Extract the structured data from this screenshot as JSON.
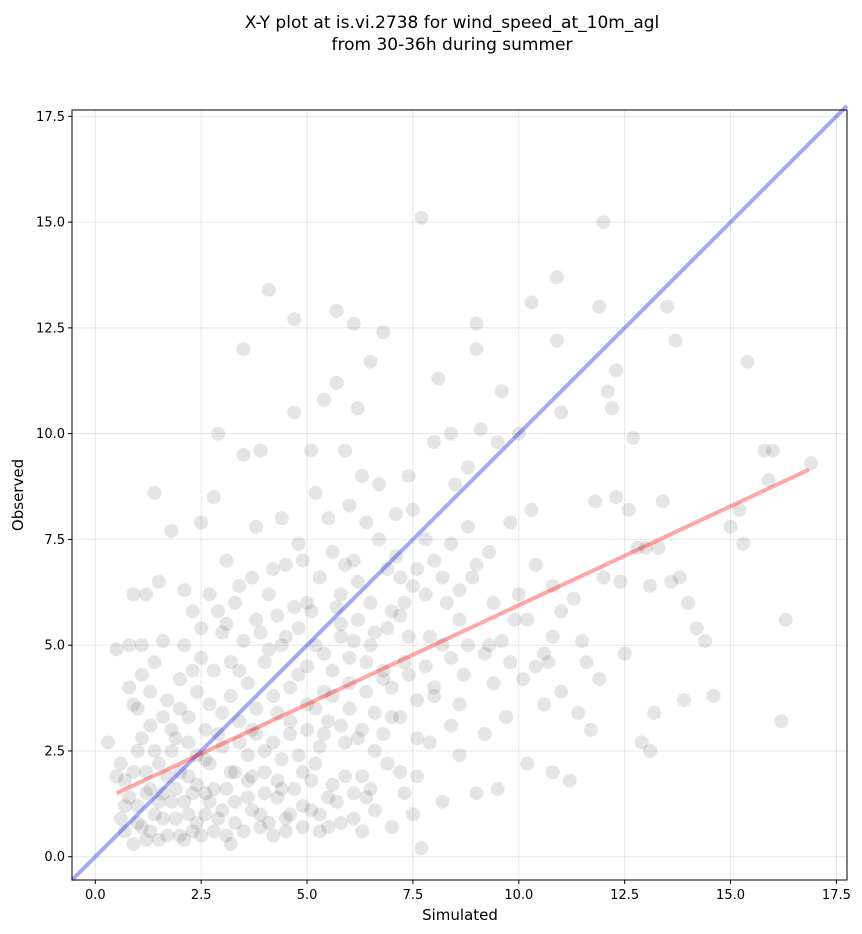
{
  "chart_data": {
    "type": "scatter",
    "title": [
      "X-Y plot at is.vi.2738 for wind_speed_at_10m_agl",
      "from 30-36h during summer"
    ],
    "xlabel": "Simulated",
    "ylabel": "Observed",
    "xlim": [
      -0.55,
      17.75
    ],
    "ylim": [
      -0.55,
      17.65
    ],
    "xticks": [
      0.0,
      2.5,
      5.0,
      7.5,
      10.0,
      12.5,
      15.0,
      17.5
    ],
    "yticks": [
      0.0,
      2.5,
      5.0,
      7.5,
      10.0,
      12.5,
      15.0,
      17.5
    ],
    "xtick_labels": [
      "0.0",
      "2.5",
      "5.0",
      "7.5",
      "10.0",
      "12.5",
      "15.0",
      "17.5"
    ],
    "ytick_labels": [
      "0.0",
      "2.5",
      "5.0",
      "7.5",
      "10.0",
      "12.5",
      "15.0",
      "17.5"
    ],
    "grid": true,
    "point_color": "#000000",
    "point_alpha": 0.1,
    "identity_line": {
      "color": "#0000ff",
      "alpha": 0.35,
      "from": [
        -0.55,
        -0.55
      ],
      "to": [
        17.75,
        17.75
      ]
    },
    "fit_line": {
      "color": "#ff0000",
      "alpha": 0.35,
      "from": [
        0.5,
        1.5
      ],
      "to": [
        16.85,
        9.15
      ]
    },
    "points": [
      [
        0.3,
        2.7
      ],
      [
        0.5,
        1.9
      ],
      [
        0.5,
        4.9
      ],
      [
        0.6,
        2.2
      ],
      [
        0.7,
        0.6
      ],
      [
        0.7,
        1.8
      ],
      [
        0.8,
        4.0
      ],
      [
        0.8,
        5.0
      ],
      [
        0.9,
        6.2
      ],
      [
        0.9,
        3.6
      ],
      [
        1.0,
        0.8
      ],
      [
        1.0,
        1.2
      ],
      [
        1.0,
        2.5
      ],
      [
        1.1,
        4.3
      ],
      [
        1.1,
        5.0
      ],
      [
        1.2,
        6.2
      ],
      [
        1.2,
        0.4
      ],
      [
        1.3,
        1.6
      ],
      [
        1.3,
        3.1
      ],
      [
        1.4,
        8.6
      ],
      [
        1.4,
        4.6
      ],
      [
        1.5,
        6.5
      ],
      [
        1.5,
        2.2
      ],
      [
        1.6,
        0.9
      ],
      [
        1.6,
        5.1
      ],
      [
        1.7,
        3.7
      ],
      [
        1.8,
        1.3
      ],
      [
        1.8,
        7.7
      ],
      [
        1.9,
        2.8
      ],
      [
        2.0,
        4.2
      ],
      [
        2.0,
        0.5
      ],
      [
        2.1,
        6.3
      ],
      [
        2.2,
        1.9
      ],
      [
        2.2,
        3.3
      ],
      [
        2.3,
        5.8
      ],
      [
        2.4,
        0.8
      ],
      [
        2.4,
        2.4
      ],
      [
        2.5,
        4.7
      ],
      [
        2.5,
        7.9
      ],
      [
        2.6,
        1.5
      ],
      [
        2.7,
        3.6
      ],
      [
        2.8,
        8.5
      ],
      [
        2.8,
        0.6
      ],
      [
        2.9,
        2.9
      ],
      [
        2.9,
        10.0
      ],
      [
        3.0,
        5.3
      ],
      [
        3.0,
        1.1
      ],
      [
        3.1,
        7.0
      ],
      [
        3.2,
        3.8
      ],
      [
        3.2,
        0.3
      ],
      [
        3.3,
        2.0
      ],
      [
        3.4,
        6.4
      ],
      [
        3.4,
        4.4
      ],
      [
        3.5,
        12.0
      ],
      [
        3.5,
        9.5
      ],
      [
        3.6,
        1.4
      ],
      [
        3.7,
        3.0
      ],
      [
        3.8,
        7.8
      ],
      [
        3.8,
        5.6
      ],
      [
        3.9,
        0.7
      ],
      [
        3.9,
        9.6
      ],
      [
        4.0,
        2.5
      ],
      [
        4.1,
        13.4
      ],
      [
        4.1,
        4.9
      ],
      [
        4.2,
        6.8
      ],
      [
        4.3,
        1.8
      ],
      [
        4.3,
        3.4
      ],
      [
        4.4,
        8.0
      ],
      [
        4.5,
        5.2
      ],
      [
        4.5,
        0.9
      ],
      [
        4.6,
        2.9
      ],
      [
        4.7,
        12.7
      ],
      [
        4.7,
        10.5
      ],
      [
        4.8,
        4.3
      ],
      [
        4.8,
        7.4
      ],
      [
        4.9,
        1.2
      ],
      [
        5.0,
        3.6
      ],
      [
        5.0,
        6.0
      ],
      [
        5.1,
        9.6
      ],
      [
        5.2,
        2.2
      ],
      [
        5.2,
        8.6
      ],
      [
        5.3,
        0.6
      ],
      [
        5.4,
        4.8
      ],
      [
        5.4,
        10.8
      ],
      [
        5.5,
        3.2
      ],
      [
        5.6,
        7.2
      ],
      [
        5.6,
        1.7
      ],
      [
        5.7,
        12.9
      ],
      [
        5.7,
        11.2
      ],
      [
        5.8,
        5.5
      ],
      [
        5.9,
        9.6
      ],
      [
        5.9,
        2.7
      ],
      [
        6.0,
        4.1
      ],
      [
        6.0,
        8.3
      ],
      [
        6.1,
        12.6
      ],
      [
        6.1,
        0.9
      ],
      [
        6.2,
        6.5
      ],
      [
        6.2,
        10.6
      ],
      [
        6.3,
        3.0
      ],
      [
        6.4,
        7.9
      ],
      [
        6.4,
        1.4
      ],
      [
        6.5,
        11.7
      ],
      [
        6.5,
        5.0
      ],
      [
        6.6,
        2.5
      ],
      [
        6.7,
        8.8
      ],
      [
        6.8,
        12.4
      ],
      [
        6.8,
        4.2
      ],
      [
        6.9,
        6.8
      ],
      [
        7.0,
        0.7
      ],
      [
        7.0,
        3.3
      ],
      [
        7.1,
        8.1
      ],
      [
        7.2,
        5.7
      ],
      [
        7.2,
        2.0
      ],
      [
        7.3,
        4.6
      ],
      [
        7.4,
        9.0
      ],
      [
        7.5,
        1.0
      ],
      [
        7.5,
        6.4
      ],
      [
        7.6,
        3.7
      ],
      [
        7.7,
        15.1
      ],
      [
        7.7,
        0.2
      ],
      [
        7.8,
        7.5
      ],
      [
        7.9,
        2.7
      ],
      [
        7.9,
        5.2
      ],
      [
        8.0,
        9.8
      ],
      [
        8.0,
        4.0
      ],
      [
        8.1,
        11.3
      ],
      [
        8.2,
        1.3
      ],
      [
        8.3,
        6.0
      ],
      [
        8.4,
        3.1
      ],
      [
        8.4,
        10.0
      ],
      [
        8.5,
        8.8
      ],
      [
        8.6,
        2.4
      ],
      [
        8.6,
        5.6
      ],
      [
        8.7,
        4.3
      ],
      [
        8.8,
        9.2
      ],
      [
        8.9,
        6.6
      ],
      [
        9.0,
        1.5
      ],
      [
        9.0,
        12.6
      ],
      [
        9.0,
        12.0
      ],
      [
        9.1,
        10.1
      ],
      [
        9.2,
        2.9
      ],
      [
        9.3,
        5.0
      ],
      [
        9.3,
        7.2
      ],
      [
        9.4,
        4.1
      ],
      [
        9.5,
        9.8
      ],
      [
        9.5,
        1.6
      ],
      [
        9.6,
        11.0
      ],
      [
        9.7,
        3.3
      ],
      [
        9.8,
        7.9
      ],
      [
        9.9,
        5.6
      ],
      [
        10.0,
        10.0
      ],
      [
        10.1,
        4.2
      ],
      [
        10.2,
        2.2
      ],
      [
        10.3,
        8.2
      ],
      [
        10.3,
        13.1
      ],
      [
        10.4,
        4.5
      ],
      [
        10.6,
        3.6
      ],
      [
        10.7,
        4.6
      ],
      [
        10.8,
        6.4
      ],
      [
        10.8,
        2.0
      ],
      [
        10.9,
        13.7
      ],
      [
        10.9,
        12.2
      ],
      [
        11.0,
        10.5
      ],
      [
        11.0,
        5.8
      ],
      [
        11.2,
        1.8
      ],
      [
        11.3,
        6.1
      ],
      [
        11.4,
        3.4
      ],
      [
        11.5,
        5.1
      ],
      [
        11.6,
        4.6
      ],
      [
        11.7,
        3.0
      ],
      [
        11.8,
        8.4
      ],
      [
        11.9,
        13.0
      ],
      [
        11.9,
        4.2
      ],
      [
        12.0,
        15.0
      ],
      [
        12.0,
        6.6
      ],
      [
        12.1,
        11.0
      ],
      [
        12.2,
        10.6
      ],
      [
        12.3,
        11.5
      ],
      [
        12.3,
        8.5
      ],
      [
        12.4,
        6.5
      ],
      [
        12.5,
        4.8
      ],
      [
        12.6,
        8.2
      ],
      [
        12.7,
        9.9
      ],
      [
        12.8,
        7.3
      ],
      [
        12.9,
        2.7
      ],
      [
        13.0,
        7.3
      ],
      [
        13.1,
        2.5
      ],
      [
        13.1,
        6.4
      ],
      [
        13.2,
        3.4
      ],
      [
        13.3,
        7.3
      ],
      [
        13.4,
        8.4
      ],
      [
        13.5,
        13.0
      ],
      [
        13.6,
        6.5
      ],
      [
        13.7,
        12.2
      ],
      [
        13.8,
        6.6
      ],
      [
        13.9,
        3.7
      ],
      [
        14.0,
        6.0
      ],
      [
        14.2,
        5.4
      ],
      [
        14.4,
        5.1
      ],
      [
        14.6,
        3.8
      ],
      [
        15.0,
        7.8
      ],
      [
        15.2,
        8.2
      ],
      [
        15.3,
        7.4
      ],
      [
        15.4,
        11.7
      ],
      [
        15.8,
        9.6
      ],
      [
        15.9,
        8.9
      ],
      [
        16.0,
        9.6
      ],
      [
        16.2,
        3.2
      ],
      [
        16.3,
        5.6
      ],
      [
        16.9,
        9.3
      ],
      [
        0.6,
        0.9
      ],
      [
        0.8,
        1.4
      ],
      [
        0.9,
        0.3
      ],
      [
        1.2,
        2.0
      ],
      [
        1.4,
        1.0
      ],
      [
        1.5,
        0.4
      ],
      [
        1.7,
        1.9
      ],
      [
        1.9,
        0.9
      ],
      [
        2.1,
        1.3
      ],
      [
        2.3,
        0.6
      ],
      [
        2.6,
        1.0
      ],
      [
        2.7,
        2.2
      ],
      [
        3.1,
        1.6
      ],
      [
        3.3,
        0.8
      ],
      [
        3.6,
        2.4
      ],
      [
        3.7,
        1.1
      ],
      [
        4.0,
        1.5
      ],
      [
        4.2,
        0.5
      ],
      [
        4.4,
        2.3
      ],
      [
        4.6,
        1.0
      ],
      [
        4.9,
        2.0
      ],
      [
        5.1,
        1.1
      ],
      [
        5.3,
        2.6
      ],
      [
        5.5,
        1.4
      ],
      [
        5.8,
        0.8
      ],
      [
        6.3,
        1.9
      ],
      [
        6.6,
        1.1
      ],
      [
        6.9,
        2.2
      ],
      [
        7.3,
        1.5
      ],
      [
        7.6,
        1.9
      ],
      [
        1.1,
        2.8
      ],
      [
        1.3,
        3.9
      ],
      [
        1.6,
        3.3
      ],
      [
        1.8,
        2.5
      ],
      [
        2.0,
        3.5
      ],
      [
        2.2,
        2.7
      ],
      [
        2.4,
        3.9
      ],
      [
        2.6,
        3.0
      ],
      [
        2.8,
        4.4
      ],
      [
        3.0,
        3.4
      ],
      [
        3.2,
        4.6
      ],
      [
        3.4,
        3.2
      ],
      [
        3.6,
        4.1
      ],
      [
        3.8,
        3.5
      ],
      [
        4.0,
        4.6
      ],
      [
        4.2,
        3.8
      ],
      [
        4.4,
        5.0
      ],
      [
        4.6,
        4.0
      ],
      [
        4.8,
        5.4
      ],
      [
        5.0,
        4.5
      ],
      [
        5.2,
        5.0
      ],
      [
        5.4,
        3.9
      ],
      [
        5.6,
        4.4
      ],
      [
        5.8,
        5.2
      ],
      [
        6.0,
        4.7
      ],
      [
        6.2,
        5.6
      ],
      [
        6.4,
        4.6
      ],
      [
        6.6,
        5.3
      ],
      [
        6.8,
        4.4
      ],
      [
        7.0,
        5.8
      ],
      [
        7.2,
        6.6
      ],
      [
        7.4,
        5.2
      ],
      [
        7.6,
        6.8
      ],
      [
        7.8,
        6.2
      ],
      [
        8.0,
        7.0
      ],
      [
        8.2,
        6.6
      ],
      [
        8.4,
        7.4
      ],
      [
        8.6,
        6.3
      ],
      [
        8.8,
        7.8
      ],
      [
        9.0,
        6.9
      ],
      [
        5.5,
        8.0
      ],
      [
        5.8,
        6.2
      ],
      [
        6.1,
        7.0
      ],
      [
        6.3,
        9.0
      ],
      [
        6.5,
        6.0
      ],
      [
        6.7,
        7.5
      ],
      [
        6.9,
        5.4
      ],
      [
        7.1,
        7.1
      ],
      [
        7.3,
        6.0
      ],
      [
        7.5,
        8.2
      ],
      [
        4.1,
        6.2
      ],
      [
        4.3,
        5.7
      ],
      [
        4.5,
        6.9
      ],
      [
        4.7,
        5.9
      ],
      [
        4.9,
        7.0
      ],
      [
        5.1,
        5.8
      ],
      [
        5.3,
        6.6
      ],
      [
        5.7,
        5.9
      ],
      [
        5.9,
        6.9
      ],
      [
        6.1,
        5.1
      ],
      [
        3.1,
        5.5
      ],
      [
        3.3,
        6.0
      ],
      [
        3.5,
        5.1
      ],
      [
        3.7,
        6.6
      ],
      [
        3.9,
        5.3
      ],
      [
        2.5,
        5.4
      ],
      [
        2.7,
        6.2
      ],
      [
        2.9,
        5.8
      ],
      [
        2.1,
        5.0
      ],
      [
        2.3,
        4.4
      ],
      [
        1.0,
        3.5
      ],
      [
        1.2,
        1.5
      ],
      [
        1.4,
        2.5
      ],
      [
        1.6,
        1.5
      ],
      [
        1.8,
        3.0
      ],
      [
        2.0,
        2.0
      ],
      [
        2.2,
        1.0
      ],
      [
        2.4,
        1.7
      ],
      [
        2.6,
        2.3
      ],
      [
        2.8,
        1.6
      ],
      [
        3.0,
        2.6
      ],
      [
        3.2,
        2.0
      ],
      [
        3.4,
        2.7
      ],
      [
        3.6,
        1.8
      ],
      [
        3.8,
        2.9
      ],
      [
        4.0,
        2.0
      ],
      [
        4.2,
        2.7
      ],
      [
        4.4,
        1.6
      ],
      [
        4.6,
        3.2
      ],
      [
        4.8,
        2.4
      ],
      [
        5.0,
        3.0
      ],
      [
        5.2,
        3.5
      ],
      [
        5.4,
        2.9
      ],
      [
        5.6,
        3.8
      ],
      [
        5.8,
        3.1
      ],
      [
        6.0,
        3.5
      ],
      [
        6.2,
        2.8
      ],
      [
        6.4,
        3.9
      ],
      [
        6.6,
        3.4
      ],
      [
        6.8,
        2.9
      ],
      [
        7.0,
        4.0
      ],
      [
        7.2,
        3.3
      ],
      [
        7.4,
        4.3
      ],
      [
        7.6,
        2.8
      ],
      [
        7.8,
        4.5
      ],
      [
        8.0,
        3.8
      ],
      [
        8.2,
        5.0
      ],
      [
        8.4,
        4.7
      ],
      [
        8.6,
        3.6
      ],
      [
        8.8,
        5.0
      ],
      [
        9.2,
        4.8
      ],
      [
        9.4,
        6.0
      ],
      [
        9.6,
        5.1
      ],
      [
        9.8,
        4.6
      ],
      [
        10.0,
        6.2
      ],
      [
        10.2,
        5.6
      ],
      [
        10.4,
        6.9
      ],
      [
        10.6,
        4.8
      ],
      [
        10.8,
        5.2
      ],
      [
        11.0,
        3.9
      ],
      [
        0.7,
        1.2
      ],
      [
        0.9,
        2.0
      ],
      [
        1.1,
        0.7
      ],
      [
        1.3,
        0.6
      ],
      [
        1.5,
        1.3
      ],
      [
        1.7,
        0.5
      ],
      [
        1.9,
        1.6
      ],
      [
        2.1,
        0.4
      ],
      [
        2.3,
        1.5
      ],
      [
        2.5,
        0.5
      ],
      [
        2.7,
        1.3
      ],
      [
        2.9,
        0.9
      ],
      [
        3.1,
        0.5
      ],
      [
        3.3,
        1.3
      ],
      [
        3.5,
        0.6
      ],
      [
        3.7,
        1.9
      ],
      [
        3.9,
        1.0
      ],
      [
        4.1,
        0.8
      ],
      [
        4.3,
        1.4
      ],
      [
        4.5,
        0.6
      ],
      [
        4.7,
        1.6
      ],
      [
        4.9,
        0.7
      ],
      [
        5.1,
        1.8
      ],
      [
        5.3,
        1.0
      ],
      [
        5.5,
        0.7
      ],
      [
        5.7,
        1.3
      ],
      [
        5.9,
        1.9
      ],
      [
        6.1,
        1.5
      ],
      [
        6.3,
        0.6
      ],
      [
        6.5,
        1.6
      ]
    ]
  }
}
